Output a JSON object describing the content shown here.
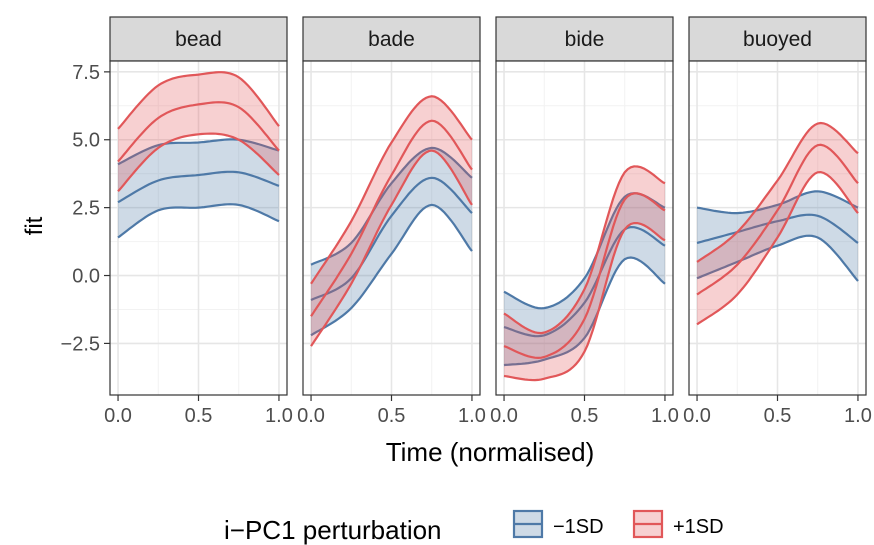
{
  "chart_data": {
    "type": "line",
    "facets": [
      "bead",
      "bade",
      "bide",
      "buoyed"
    ],
    "xlabel": "Time (normalised)",
    "ylabel": "fit",
    "xlim": [
      0,
      1
    ],
    "ylim": [
      -4.4,
      7.9
    ],
    "x_ticks": [
      "0.0",
      "0.5",
      "1.0"
    ],
    "y_ticks": [
      "-2.5",
      "0.0",
      "2.5",
      "5.0",
      "7.5"
    ],
    "grid": true,
    "legend": {
      "title": "i−PC1 perturbation",
      "position": "bottom",
      "entries": [
        {
          "label": "−1SD",
          "color": "#4E79A7"
        },
        {
          "label": "+1SD",
          "color": "#E15759"
        }
      ]
    },
    "x": [
      0,
      0.25,
      0.5,
      0.75,
      1.0
    ],
    "panels": [
      {
        "name": "bead",
        "series": [
          {
            "name": "−1SD",
            "fit": [
              2.7,
              3.5,
              3.7,
              3.8,
              3.3
            ],
            "lower": [
              1.4,
              2.4,
              2.5,
              2.6,
              2.0
            ],
            "upper": [
              4.1,
              4.8,
              4.9,
              5.0,
              4.6
            ]
          },
          {
            "name": "+1SD",
            "fit": [
              4.2,
              5.8,
              6.3,
              6.2,
              4.6
            ],
            "lower": [
              3.1,
              4.7,
              5.2,
              5.0,
              3.7
            ],
            "upper": [
              5.4,
              7.0,
              7.4,
              7.3,
              5.5
            ]
          }
        ]
      },
      {
        "name": "bade",
        "series": [
          {
            "name": "−1SD",
            "fit": [
              -0.9,
              -0.1,
              2.2,
              3.6,
              2.3
            ],
            "lower": [
              -2.2,
              -1.2,
              0.8,
              2.6,
              0.9
            ],
            "upper": [
              0.4,
              1.2,
              3.4,
              4.7,
              3.6
            ]
          },
          {
            "name": "+1SD",
            "fit": [
              -1.5,
              0.8,
              3.7,
              5.7,
              3.9
            ],
            "lower": [
              -2.6,
              -0.3,
              2.6,
              4.6,
              2.6
            ],
            "upper": [
              -0.3,
              2.0,
              4.9,
              6.6,
              5.0
            ]
          }
        ]
      },
      {
        "name": "bide",
        "series": [
          {
            "name": "−1SD",
            "fit": [
              -1.9,
              -2.2,
              -1.0,
              1.7,
              1.1
            ],
            "lower": [
              -3.3,
              -3.1,
              -2.3,
              0.6,
              -0.3
            ],
            "upper": [
              -0.6,
              -1.2,
              -0.1,
              2.9,
              2.5
            ]
          },
          {
            "name": "+1SD",
            "fit": [
              -2.6,
              -3.0,
              -1.6,
              2.8,
              2.4
            ],
            "lower": [
              -3.7,
              -3.8,
              -2.8,
              1.7,
              1.3
            ],
            "upper": [
              -1.4,
              -2.1,
              -0.5,
              3.8,
              3.4
            ]
          }
        ]
      },
      {
        "name": "buoyed",
        "series": [
          {
            "name": "−1SD",
            "fit": [
              1.2,
              1.6,
              2.0,
              2.2,
              1.2
            ],
            "lower": [
              -0.1,
              0.5,
              1.1,
              1.4,
              -0.2
            ],
            "upper": [
              2.5,
              2.3,
              2.6,
              3.1,
              2.5
            ]
          },
          {
            "name": "+1SD",
            "fit": [
              -0.7,
              0.4,
              2.4,
              4.8,
              3.4
            ],
            "lower": [
              -1.8,
              -0.7,
              1.4,
              3.8,
              2.3
            ],
            "upper": [
              0.5,
              1.6,
              3.5,
              5.6,
              4.5
            ]
          }
        ]
      }
    ]
  }
}
